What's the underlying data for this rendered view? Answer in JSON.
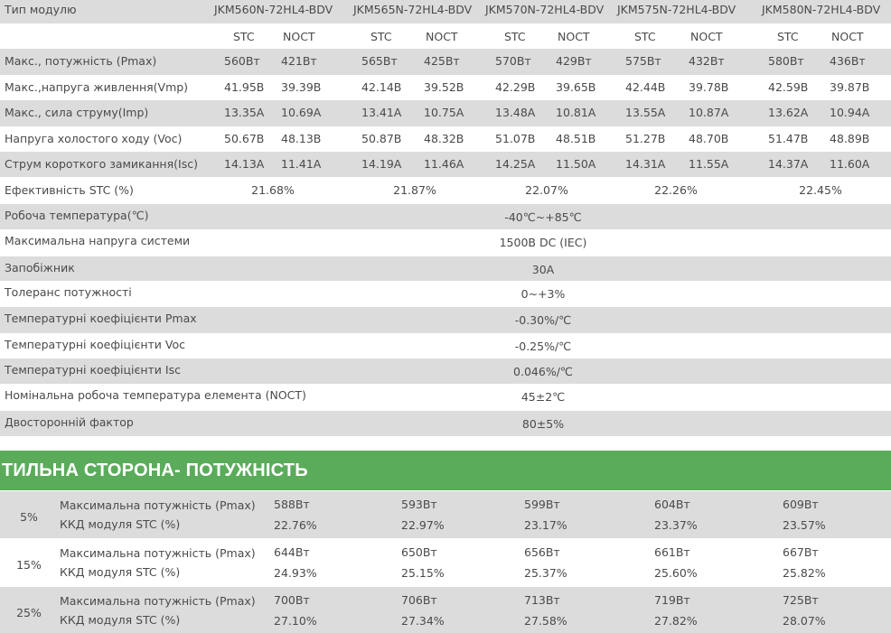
{
  "spec_table": {
    "header_label": "Тип модулю",
    "models": [
      "JKM560N-72HL4-BDV",
      "JKM565N-72HL4-BDV",
      "JKM570N-72HL4-BDV",
      "JKM575N-72HL4-BDV",
      "JKM580N-72HL4-BDV"
    ],
    "sub_headers": [
      "STC",
      "NOCT"
    ],
    "per_model_rows": [
      {
        "label": "Макс., потужність (Pmax)",
        "values": [
          [
            "560Вт",
            "421Вт"
          ],
          [
            "565Вт",
            "425Вт"
          ],
          [
            "570Вт",
            "429Вт"
          ],
          [
            "575Вт",
            "432Вт"
          ],
          [
            "580Вт",
            "436Вт"
          ]
        ]
      },
      {
        "label": "Макс.,напруга живлення(Vmp)",
        "values": [
          [
            "41.95В",
            "39.39В"
          ],
          [
            "42.14В",
            "39.52В"
          ],
          [
            "42.29В",
            "39.65В"
          ],
          [
            "42.44В",
            "39.78В"
          ],
          [
            "42.59В",
            "39.87В"
          ]
        ]
      },
      {
        "label": "Макс., сила струму(Imp)",
        "values": [
          [
            "13.35A",
            "10.69A"
          ],
          [
            "13.41A",
            "10.75A"
          ],
          [
            "13.48A",
            "10.81A"
          ],
          [
            "13.55A",
            "10.87A"
          ],
          [
            "13.62A",
            "10.94A"
          ]
        ]
      },
      {
        "label": "Напруга холостого ходу (Voc)",
        "values": [
          [
            "50.67В",
            "48.13В"
          ],
          [
            "50.87В",
            "48.32В"
          ],
          [
            "51.07В",
            "48.51В"
          ],
          [
            "51.27В",
            "48.70В"
          ],
          [
            "51.47В",
            "48.89В"
          ]
        ]
      },
      {
        "label": "Струм короткого замикання(Isc)",
        "values": [
          [
            "14.13A",
            "11.41A"
          ],
          [
            "14.19A",
            "11.46A"
          ],
          [
            "14.25A",
            "11.50A"
          ],
          [
            "14.31A",
            "11.55A"
          ],
          [
            "14.37A",
            "11.60A"
          ]
        ]
      }
    ],
    "efficiency_row": {
      "label": "Ефективність STC (%)",
      "values": [
        "21.68%",
        "21.87%",
        "22.07%",
        "22.26%",
        "22.45%"
      ]
    },
    "shared_rows": [
      {
        "label": "Робоча температура(℃)",
        "value": "-40℃~+85℃"
      },
      {
        "label": "Максимальна напруга системи",
        "value": "1500В DC (IEC)"
      },
      {
        "label": "Запобіжник",
        "value": "30A"
      },
      {
        "label": "Толеранс потужності",
        "value": "0~+3%"
      },
      {
        "label": "Температурні коефіцієнти Pmax",
        "value": "-0.30%/℃"
      },
      {
        "label": "Температурні коефіцієнти Voc",
        "value": "-0.25%/℃"
      },
      {
        "label": "Температурні коефіцієнти Isc",
        "value": "0.046%/℃"
      },
      {
        "label": "Номінальна робоча температура елемента (NOCT)",
        "value": "45±2℃"
      },
      {
        "label": "Двосторонній фактор",
        "value": "80±5%"
      }
    ]
  },
  "backside": {
    "title": "ТИЛЬНА СТОРОНА- ПОТУЖНІСТЬ",
    "groups": [
      {
        "gain": "5%",
        "power_label": "Максимальна потужність (Pmax)",
        "eff_label": "ККД модуля STC (%)",
        "power": [
          "588Вт",
          "593Вт",
          "599Вт",
          "604Вт",
          "609Вт"
        ],
        "eff": [
          "22.76%",
          "22.97%",
          "23.17%",
          "23.37%",
          "23.57%"
        ]
      },
      {
        "gain": "15%",
        "power_label": "Максимальна потужність (Pmax)",
        "eff_label": "ККД модуля STC (%)",
        "power": [
          "644Вт",
          "650Вт",
          "656Вт",
          "661Вт",
          "667Вт"
        ],
        "eff": [
          "24.93%",
          "25.15%",
          "25.37%",
          "25.60%",
          "25.82%"
        ]
      },
      {
        "gain": "25%",
        "power_label": "Максимальна потужність (Pmax)",
        "eff_label": "ККД модуля STC (%)",
        "power": [
          "700Вт",
          "706Вт",
          "713Вт",
          "719Вт",
          "725Вт"
        ],
        "eff": [
          "27.10%",
          "27.34%",
          "27.58%",
          "27.82%",
          "28.07%"
        ]
      }
    ]
  },
  "colors": {
    "row_grey": "#dcdcdc",
    "section_green": "#5aac5b",
    "text": "#4a4a4a"
  }
}
